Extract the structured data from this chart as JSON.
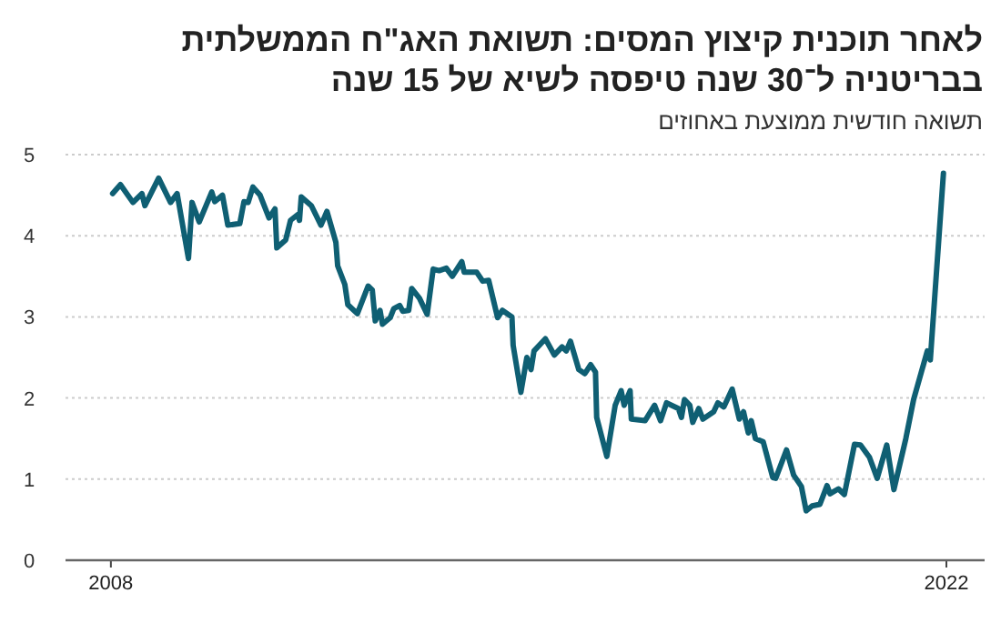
{
  "chart_data": {
    "type": "line",
    "title": "לאחר תוכנית קיצוץ המסים: תשואת האג\"ח הממשלתית בבריטניה ל־30 שנה טיפסה לשיא של 15 שנה",
    "subtitle": "תשואה חודשית ממוצעת באחוזים",
    "x": [
      2008.03,
      2008.16,
      2008.37,
      2008.52,
      2008.57,
      2008.8,
      2009.0,
      2009.11,
      2009.3,
      2009.36,
      2009.48,
      2009.69,
      2009.74,
      2009.87,
      2009.96,
      2010.16,
      2010.23,
      2010.3,
      2010.38,
      2010.5,
      2010.65,
      2010.75,
      2010.78,
      2010.93,
      2011.01,
      2011.13,
      2011.16,
      2011.19,
      2011.36,
      2011.52,
      2011.62,
      2011.77,
      2011.8,
      2011.92,
      2011.97,
      2012.13,
      2012.31,
      2012.38,
      2012.43,
      2012.51,
      2012.55,
      2012.68,
      2012.74,
      2012.84,
      2012.89,
      2012.99,
      2013.04,
      2013.17,
      2013.3,
      2013.4,
      2013.5,
      2013.62,
      2013.72,
      2013.88,
      2013.92,
      2014.13,
      2014.23,
      2014.33,
      2014.48,
      2014.56,
      2014.72,
      2014.74,
      2014.87,
      2014.97,
      2015.04,
      2015.09,
      2015.28,
      2015.43,
      2015.56,
      2015.63,
      2015.7,
      2015.84,
      2015.94,
      2016.04,
      2016.12,
      2016.14,
      2016.31,
      2016.45,
      2016.55,
      2016.6,
      2016.7,
      2016.72,
      2016.95,
      2017.11,
      2017.21,
      2017.31,
      2017.51,
      2017.56,
      2017.61,
      2017.7,
      2017.75,
      2017.85,
      2017.92,
      2018.1,
      2018.17,
      2018.27,
      2018.41,
      2018.53,
      2018.6,
      2018.68,
      2018.73,
      2018.8,
      2018.93,
      2019.09,
      2019.14,
      2019.32,
      2019.44,
      2019.57,
      2019.65,
      2019.75,
      2019.88,
      2020.0,
      2020.05,
      2020.19,
      2020.29,
      2020.46,
      2020.56,
      2020.71,
      2020.84,
      2021.0,
      2021.12,
      2021.32,
      2021.45,
      2021.68,
      2021.73,
      2021.95
    ],
    "series": [
      {
        "color": "#0f5f73",
        "values": [
          4.52,
          4.63,
          4.41,
          4.52,
          4.37,
          4.71,
          4.41,
          4.52,
          3.72,
          4.41,
          4.17,
          4.54,
          4.42,
          4.5,
          4.13,
          4.15,
          4.42,
          4.41,
          4.6,
          4.5,
          4.22,
          4.33,
          3.85,
          3.95,
          4.19,
          4.26,
          4.19,
          4.48,
          4.37,
          4.13,
          4.3,
          3.92,
          3.63,
          3.4,
          3.15,
          3.04,
          3.38,
          3.33,
          2.95,
          3.08,
          2.91,
          2.99,
          3.1,
          3.14,
          3.07,
          3.08,
          3.35,
          3.23,
          3.03,
          3.59,
          3.57,
          3.6,
          3.5,
          3.68,
          3.55,
          3.55,
          3.44,
          3.45,
          2.99,
          3.08,
          3.0,
          2.65,
          2.07,
          2.5,
          2.35,
          2.58,
          2.73,
          2.53,
          2.63,
          2.58,
          2.7,
          2.35,
          2.3,
          2.41,
          2.32,
          1.76,
          1.28,
          1.91,
          2.09,
          1.91,
          2.09,
          1.74,
          1.72,
          1.91,
          1.72,
          1.94,
          1.87,
          1.76,
          1.98,
          1.91,
          1.7,
          1.87,
          1.74,
          1.83,
          1.94,
          1.89,
          2.11,
          1.74,
          1.83,
          1.57,
          1.72,
          1.5,
          1.46,
          1.02,
          1.01,
          1.36,
          1.05,
          0.91,
          0.61,
          0.67,
          0.69,
          0.92,
          0.82,
          0.88,
          0.81,
          1.43,
          1.42,
          1.27,
          1.01,
          1.42,
          0.87,
          1.5,
          1.98,
          2.58,
          2.47,
          4.77
        ]
      }
    ],
    "xlim": [
      2007.24,
      2022.64
    ],
    "xticks": [
      2008,
      2022
    ],
    "ylim": [
      0,
      5
    ],
    "yticks": [
      0,
      1,
      2,
      3,
      4,
      5
    ],
    "grid": "y",
    "marker": "none",
    "line_style": "solid"
  }
}
